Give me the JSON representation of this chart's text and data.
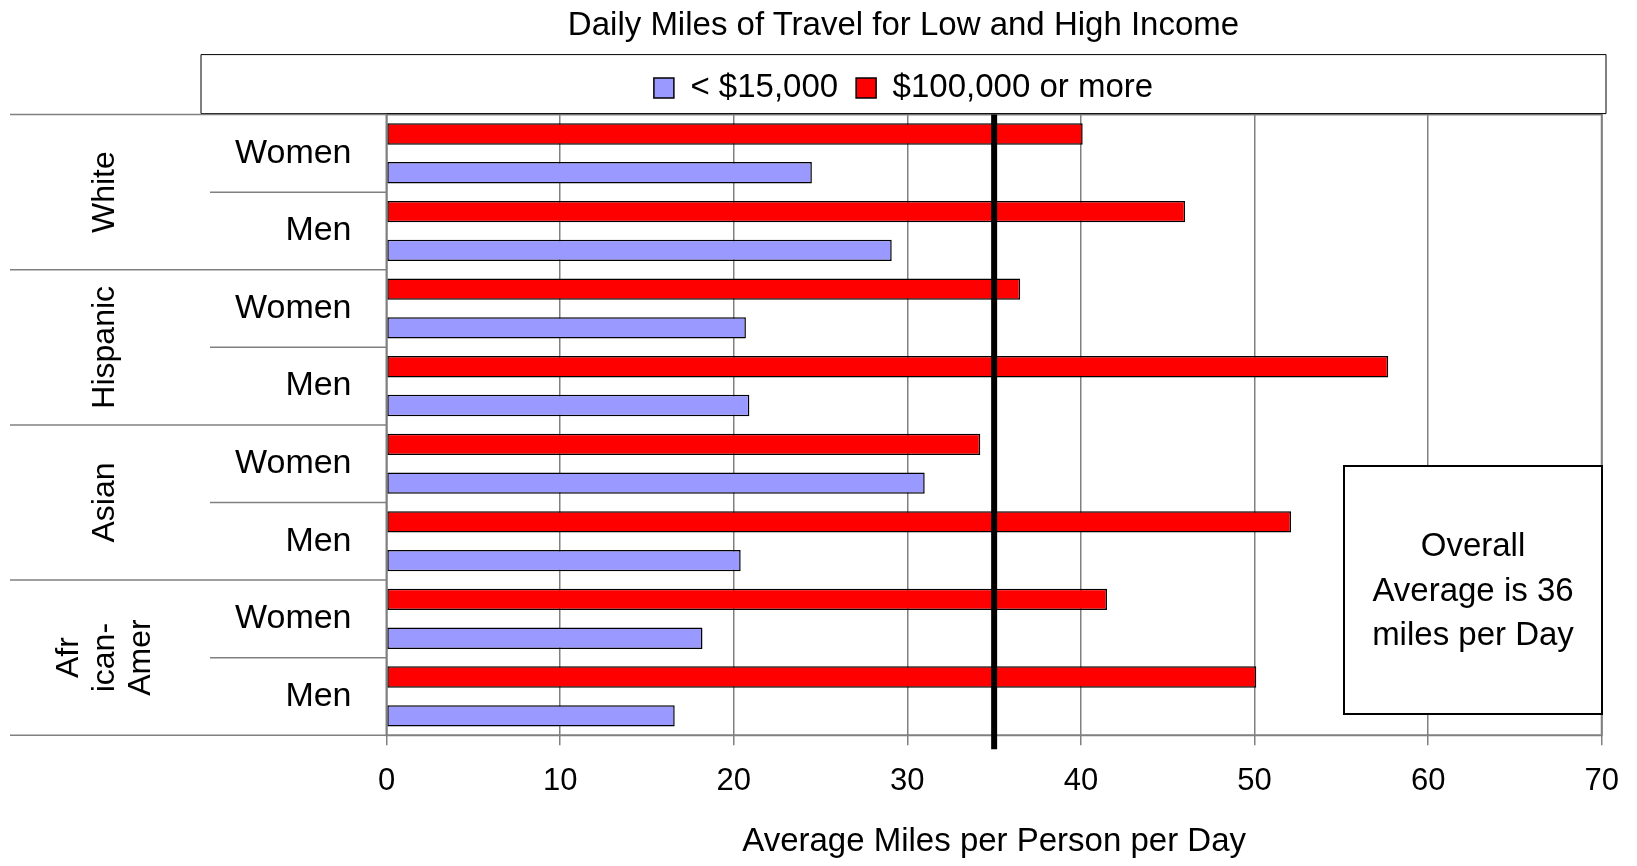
{
  "chart_data": {
    "type": "bar",
    "orientation": "horizontal",
    "title": "Daily Miles of Travel for Low and High Income",
    "xlabel": "Average Miles per Person per Day",
    "categories": [
      "Women",
      "Men",
      "Women",
      "Men",
      "Women",
      "Men",
      "Women",
      "Men"
    ],
    "series": [
      {
        "name": "< $15,000",
        "color": "#9999ff",
        "values": [
          24.5,
          29.1,
          20.7,
          20.9,
          31.0,
          20.4,
          18.2,
          16.6
        ]
      },
      {
        "name": "$100,000 or more",
        "color": "#ff0000",
        "values": [
          40.1,
          46.0,
          36.5,
          57.7,
          34.2,
          52.1,
          41.5,
          50.1
        ]
      }
    ],
    "xlim": [
      0,
      70
    ],
    "xticks": [
      0,
      10,
      20,
      30,
      40,
      50,
      60,
      70
    ],
    "grid": "x",
    "legend": "top",
    "ref_lines": [
      {
        "axis": "x",
        "value": 35,
        "color": "#000000"
      }
    ],
    "annotations": [
      "White",
      "Hispanic",
      "Asian",
      "Afr\nican-\nAmer",
      "Overall Average is 36 miles per Day"
    ]
  }
}
